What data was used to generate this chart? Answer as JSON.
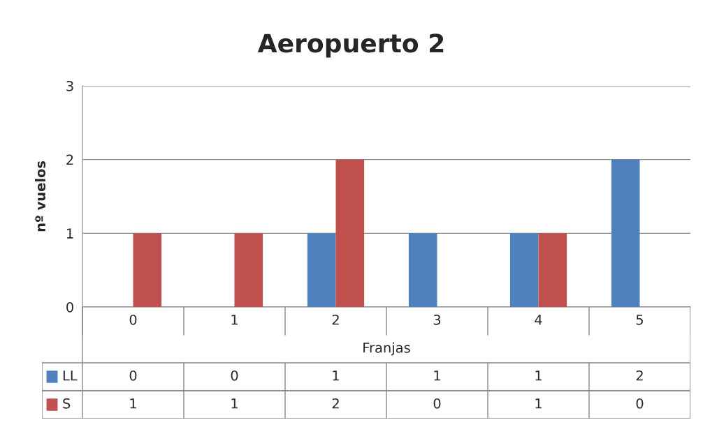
{
  "chart_data": {
    "type": "bar",
    "title": "Aeropuerto 2",
    "xlabel": "Franjas",
    "ylabel": "nº vuelos",
    "categories": [
      "0",
      "1",
      "2",
      "3",
      "4",
      "5"
    ],
    "series": [
      {
        "name": "LL",
        "color": "#4f81bd",
        "values": [
          0,
          0,
          1,
          1,
          1,
          2
        ]
      },
      {
        "name": "S",
        "color": "#c0504d",
        "values": [
          1,
          1,
          2,
          0,
          1,
          0
        ]
      }
    ],
    "ylim": [
      0,
      3
    ],
    "yticks": [
      0,
      1,
      2,
      3
    ],
    "grid": "y",
    "legend": "bottom",
    "data_labels": true
  }
}
